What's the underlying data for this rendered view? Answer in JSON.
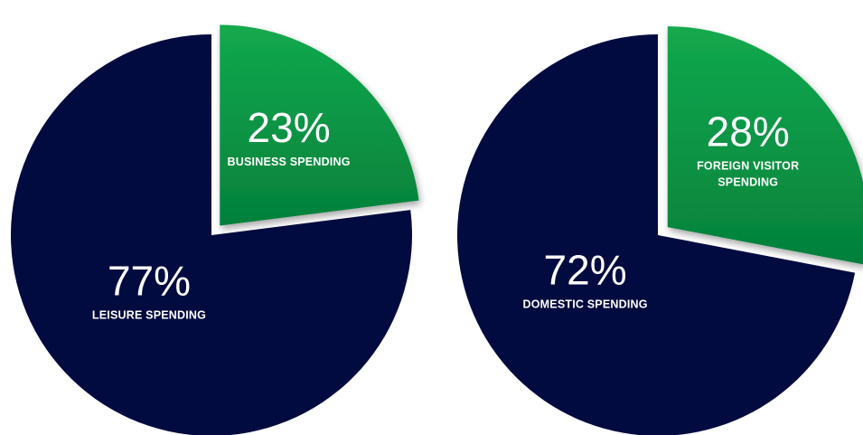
{
  "colors": {
    "major": "#020b3f",
    "minor_light": "#13a94e",
    "minor_dark": "#04803b",
    "background": "#ffffff",
    "text": "#ffffff"
  },
  "chart_data": [
    {
      "type": "pie",
      "slices": [
        {
          "label": "BUSINESS SPENDING",
          "value": 23,
          "display": "23%",
          "exploded": true
        },
        {
          "label": "LEISURE SPENDING",
          "value": 77,
          "display": "77%",
          "exploded": false
        }
      ]
    },
    {
      "type": "pie",
      "slices": [
        {
          "label": "FOREIGN VISITOR SPENDING",
          "label_lines": [
            "FOREIGN VISITOR",
            "SPENDING"
          ],
          "value": 28,
          "display": "28%",
          "exploded": true
        },
        {
          "label": "DOMESTIC SPENDING",
          "value": 72,
          "display": "72%",
          "exploded": false
        }
      ]
    }
  ]
}
